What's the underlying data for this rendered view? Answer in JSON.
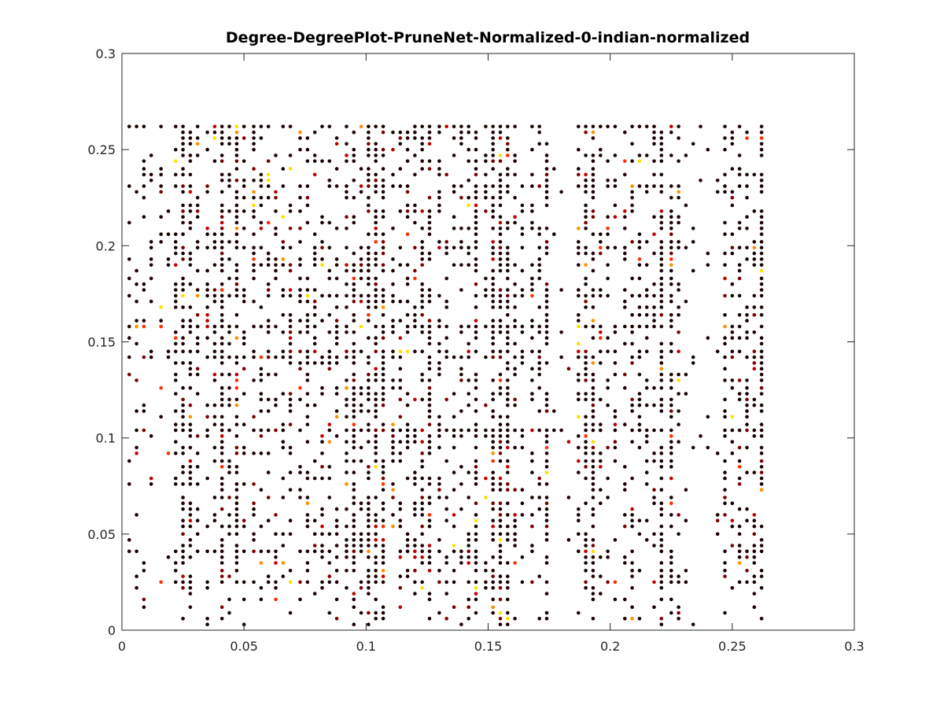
{
  "chart_data": {
    "type": "scatter",
    "title": "Degree-DegreePlot-PruneNet-Normalized-0-indian-normalized",
    "xlabel": "",
    "ylabel": "",
    "xlim": [
      0,
      0.3
    ],
    "ylim": [
      0,
      0.3
    ],
    "x_ticks": [
      "0",
      "0.05",
      "0.1",
      "0.15",
      "0.2",
      "0.25",
      "0.3"
    ],
    "y_ticks": [
      "0",
      "0.05",
      "0.1",
      "0.15",
      "0.2",
      "0.25",
      "0.3"
    ],
    "grid": false,
    "legend": "none",
    "colormap": [
      "#2a0000",
      "#7a0000",
      "#c00000",
      "#ff3000",
      "#ff9000",
      "#ffe000"
    ],
    "point_color_default": "#1a0000",
    "x_levels": [
      0.003,
      0.006,
      0.009,
      0.012,
      0.016,
      0.019,
      0.022,
      0.025,
      0.028,
      0.031,
      0.035,
      0.038,
      0.041,
      0.044,
      0.047,
      0.05,
      0.054,
      0.057,
      0.06,
      0.063,
      0.066,
      0.069,
      0.073,
      0.076,
      0.079,
      0.082,
      0.085,
      0.088,
      0.092,
      0.095,
      0.098,
      0.101,
      0.104,
      0.107,
      0.111,
      0.114,
      0.117,
      0.12,
      0.123,
      0.126,
      0.13,
      0.133,
      0.136,
      0.139,
      0.142,
      0.145,
      0.149,
      0.152,
      0.155,
      0.158,
      0.161,
      0.164,
      0.168,
      0.171,
      0.174,
      0.177,
      0.18,
      0.183,
      0.187,
      0.19,
      0.193,
      0.196,
      0.199,
      0.202,
      0.206,
      0.209,
      0.212,
      0.215,
      0.218,
      0.221,
      0.225,
      0.228,
      0.231,
      0.234,
      0.237,
      0.24,
      0.244,
      0.247,
      0.25,
      0.253,
      0.256,
      0.259,
      0.262
    ],
    "y_levels": [
      0.003,
      0.006,
      0.009,
      0.012,
      0.016,
      0.019,
      0.022,
      0.025,
      0.028,
      0.031,
      0.035,
      0.038,
      0.041,
      0.044,
      0.047,
      0.05,
      0.054,
      0.057,
      0.06,
      0.063,
      0.066,
      0.069,
      0.073,
      0.076,
      0.079,
      0.082,
      0.085,
      0.088,
      0.092,
      0.095,
      0.098,
      0.101,
      0.104,
      0.107,
      0.111,
      0.114,
      0.117,
      0.12,
      0.123,
      0.126,
      0.13,
      0.133,
      0.136,
      0.139,
      0.142,
      0.145,
      0.149,
      0.152,
      0.155,
      0.158,
      0.161,
      0.164,
      0.168,
      0.171,
      0.174,
      0.177,
      0.18,
      0.183,
      0.187,
      0.19,
      0.193,
      0.196,
      0.199,
      0.202,
      0.206,
      0.209,
      0.212,
      0.215,
      0.218,
      0.221,
      0.225,
      0.228,
      0.231,
      0.234,
      0.237,
      0.24,
      0.244,
      0.247,
      0.25,
      0.253,
      0.256,
      0.259,
      0.262
    ],
    "dense_rows": [
      0.025,
      0.042,
      0.104,
      0.142,
      0.145,
      0.158,
      0.173,
      0.19,
      0.198,
      0.231,
      0.262
    ],
    "dense_cols": [
      0.025,
      0.028,
      0.041,
      0.047,
      0.095,
      0.101,
      0.104,
      0.107,
      0.126,
      0.145,
      0.152,
      0.155,
      0.158,
      0.173,
      0.19,
      0.193,
      0.222,
      0.225,
      0.262
    ],
    "sparse_cols": [
      0.178,
      0.181,
      0.184,
      0.232,
      0.235,
      0.238,
      0.241,
      0.244
    ],
    "point_count": 3200
  }
}
